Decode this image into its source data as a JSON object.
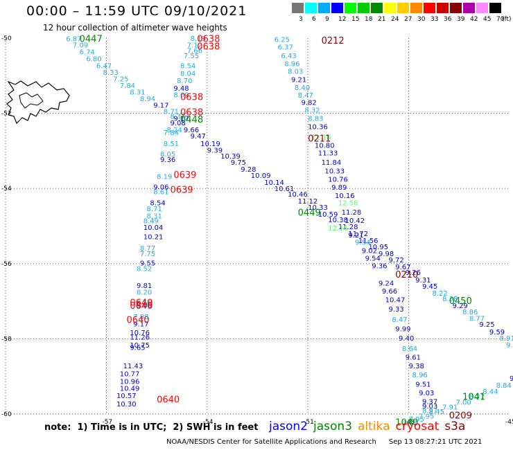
{
  "title": "00:00 – 11:59 UTC 09/10/2021",
  "subtitle": "12 hour collection of altimeter wave heights",
  "legend": {
    "unit": "(ft)",
    "levels": [
      {
        "label": "3",
        "color": "#777777"
      },
      {
        "label": "6",
        "color": "#00ffff"
      },
      {
        "label": "9",
        "color": "#00aaff"
      },
      {
        "label": "12",
        "color": "#0000ff"
      },
      {
        "label": "15",
        "color": "#00ff00"
      },
      {
        "label": "18",
        "color": "#00cc00"
      },
      {
        "label": "21",
        "color": "#008800"
      },
      {
        "label": "24",
        "color": "#ffff00"
      },
      {
        "label": "27",
        "color": "#ffcc00"
      },
      {
        "label": "30",
        "color": "#ff8800"
      },
      {
        "label": "33",
        "color": "#ff0000"
      },
      {
        "label": "36",
        "color": "#cc0000"
      },
      {
        "label": "39",
        "color": "#880000"
      },
      {
        "label": "42",
        "color": "#aa00aa"
      },
      {
        "label": "45",
        "color": "#ff88ff"
      },
      {
        "label": "70",
        "color": "#000000"
      }
    ]
  },
  "axes": {
    "lat_labels": [
      "-50",
      "-52",
      "-54",
      "-56",
      "-58",
      "-60"
    ],
    "lat_values": [
      -50,
      -52,
      -54,
      -56,
      -58,
      -60
    ],
    "lon_labels": [
      "-57",
      "-54",
      "-51",
      "-48",
      "-45"
    ],
    "lon_values": [
      -57,
      -54,
      -51,
      -48,
      -45
    ]
  },
  "colors": {
    "light": "#22aadd",
    "dark": "#0000cc",
    "pale": "#66ee66",
    "red": "#ff0000",
    "darkred": "#880000",
    "green": "#008800"
  },
  "chart_data": {
    "type": "scatter",
    "xlim": [
      -60,
      -45
    ],
    "ylim": [
      -60,
      -50
    ],
    "points": [
      {
        "x": -58.2,
        "y": -50.08,
        "v": "6.87",
        "c": "light"
      },
      {
        "x": -58.0,
        "y": -50.25,
        "v": "7.09",
        "c": "light"
      },
      {
        "x": -57.8,
        "y": -50.43,
        "v": "6.74",
        "c": "light"
      },
      {
        "x": -57.6,
        "y": -50.62,
        "v": "6.80",
        "c": "light"
      },
      {
        "x": -57.3,
        "y": -50.8,
        "v": "6.47",
        "c": "light"
      },
      {
        "x": -57.1,
        "y": -50.98,
        "v": "8.33",
        "c": "light"
      },
      {
        "x": -56.8,
        "y": -51.15,
        "v": "7.25",
        "c": "light"
      },
      {
        "x": -56.6,
        "y": -51.33,
        "v": "7.84",
        "c": "light"
      },
      {
        "x": -56.3,
        "y": -51.5,
        "v": "8.31",
        "c": "light"
      },
      {
        "x": -56.0,
        "y": -51.68,
        "v": "8.94",
        "c": "light"
      },
      {
        "x": -55.6,
        "y": -51.85,
        "v": "9.17",
        "c": "dark"
      },
      {
        "x": -55.3,
        "y": -52.02,
        "v": "8.71",
        "c": "light"
      },
      {
        "x": -55.0,
        "y": -52.2,
        "v": "9.17",
        "c": "dark"
      },
      {
        "x": -54.7,
        "y": -52.5,
        "v": "9.66",
        "c": "dark"
      },
      {
        "x": -54.5,
        "y": -52.67,
        "v": "9.47",
        "c": "dark"
      },
      {
        "x": -54.2,
        "y": -52.87,
        "v": "10.19",
        "c": "dark"
      },
      {
        "x": -54.0,
        "y": -53.05,
        "v": "9.39",
        "c": "dark"
      },
      {
        "x": -53.6,
        "y": -53.2,
        "v": "10.39",
        "c": "dark"
      },
      {
        "x": -53.3,
        "y": -53.37,
        "v": "9.75",
        "c": "dark"
      },
      {
        "x": -53.0,
        "y": -53.55,
        "v": "9.28",
        "c": "dark"
      },
      {
        "x": -52.7,
        "y": -53.72,
        "v": "10.09",
        "c": "dark"
      },
      {
        "x": -52.3,
        "y": -53.9,
        "v": "10.14",
        "c": "dark"
      },
      {
        "x": -52.0,
        "y": -54.07,
        "v": "10.61",
        "c": "dark"
      },
      {
        "x": -51.6,
        "y": -54.22,
        "v": "10.46",
        "c": "dark"
      },
      {
        "x": -51.3,
        "y": -54.4,
        "v": "11.12",
        "c": "dark"
      },
      {
        "x": -51.0,
        "y": -54.57,
        "v": "10.33",
        "c": "dark"
      },
      {
        "x": -50.7,
        "y": -54.75,
        "v": "10.59",
        "c": "dark"
      },
      {
        "x": -50.4,
        "y": -54.9,
        "v": "10.38",
        "c": "dark"
      },
      {
        "x": -50.1,
        "y": -55.08,
        "v": "11.28",
        "c": "dark"
      },
      {
        "x": -49.8,
        "y": -55.27,
        "v": "11.72",
        "c": "dark"
      },
      {
        "x": -49.5,
        "y": -55.45,
        "v": "11.56",
        "c": "dark"
      },
      {
        "x": -49.2,
        "y": -55.62,
        "v": "10.95",
        "c": "dark"
      },
      {
        "x": -48.9,
        "y": -55.8,
        "v": "9.98",
        "c": "dark"
      },
      {
        "x": -48.6,
        "y": -55.97,
        "v": "9.72",
        "c": "dark"
      },
      {
        "x": -48.4,
        "y": -56.15,
        "v": "9.67",
        "c": "dark"
      },
      {
        "x": -48.1,
        "y": -56.3,
        "v": "9.26",
        "c": "dark"
      },
      {
        "x": -47.8,
        "y": -56.5,
        "v": "9.31",
        "c": "dark"
      },
      {
        "x": -47.6,
        "y": -56.67,
        "v": "9.45",
        "c": "dark"
      },
      {
        "x": -47.3,
        "y": -56.85,
        "v": "8.22",
        "c": "light"
      },
      {
        "x": -47.0,
        "y": -57.0,
        "v": "8.38",
        "c": "light"
      },
      {
        "x": -46.7,
        "y": -57.18,
        "v": "9.29",
        "c": "dark"
      },
      {
        "x": -46.4,
        "y": -57.35,
        "v": "8.86",
        "c": "light"
      },
      {
        "x": -46.2,
        "y": -57.52,
        "v": "8.77",
        "c": "light"
      },
      {
        "x": -45.9,
        "y": -57.68,
        "v": "9.25",
        "c": "dark"
      },
      {
        "x": -45.6,
        "y": -57.88,
        "v": "9.59",
        "c": "dark"
      },
      {
        "x": -45.3,
        "y": -58.05,
        "v": "8.91",
        "c": "light"
      },
      {
        "x": -45.1,
        "y": -58.22,
        "v": "9.80",
        "c": "light"
      },
      {
        "x": -44.8,
        "y": -58.4,
        "v": "10.29",
        "c": "dark"
      },
      {
        "x": -44.6,
        "y": -58.57,
        "v": "10.19",
        "c": "dark"
      },
      {
        "x": -44.4,
        "y": -58.77,
        "v": "9.25",
        "c": "dark"
      },
      {
        "x": -44.3,
        "y": -58.9,
        "v": "9.05",
        "c": "dark"
      },
      {
        "x": -54.5,
        "y": -50.07,
        "v": "8.19",
        "c": "light"
      },
      {
        "x": -54.6,
        "y": -50.25,
        "v": "7.12",
        "c": "light"
      },
      {
        "x": -54.6,
        "y": -50.4,
        "v": "7.66",
        "c": "light"
      },
      {
        "x": -54.7,
        "y": -50.53,
        "v": "7.55",
        "c": "light"
      },
      {
        "x": -54.8,
        "y": -50.8,
        "v": "8.54",
        "c": "light"
      },
      {
        "x": -54.8,
        "y": -51.0,
        "v": "8.04",
        "c": "light"
      },
      {
        "x": -54.9,
        "y": -51.2,
        "v": "8.70",
        "c": "light"
      },
      {
        "x": -55.0,
        "y": -51.4,
        "v": "9.48",
        "c": "dark"
      },
      {
        "x": -55.0,
        "y": -51.57,
        "v": "8.09",
        "c": "light"
      },
      {
        "x": -55.1,
        "y": -52.15,
        "v": "8.37",
        "c": "light"
      },
      {
        "x": -55.1,
        "y": -52.32,
        "v": "9.08",
        "c": "dark"
      },
      {
        "x": -55.2,
        "y": -52.5,
        "v": "8.24",
        "c": "light"
      },
      {
        "x": -55.3,
        "y": -52.58,
        "v": "7.84",
        "c": "light"
      },
      {
        "x": -55.3,
        "y": -52.87,
        "v": "8.51",
        "c": "light"
      },
      {
        "x": -55.4,
        "y": -53.15,
        "v": "8.05",
        "c": "light"
      },
      {
        "x": -55.4,
        "y": -53.3,
        "v": "9.36",
        "c": "dark"
      },
      {
        "x": -55.5,
        "y": -53.75,
        "v": "8.19",
        "c": "light"
      },
      {
        "x": -55.6,
        "y": -54.02,
        "v": "9.06",
        "c": "dark"
      },
      {
        "x": -55.6,
        "y": -54.15,
        "v": "8.61",
        "c": "light"
      },
      {
        "x": -55.7,
        "y": -54.45,
        "v": "8.54",
        "c": "dark"
      },
      {
        "x": -55.8,
        "y": -54.6,
        "v": "8.71",
        "c": "light"
      },
      {
        "x": -55.8,
        "y": -54.8,
        "v": "8.31",
        "c": "light"
      },
      {
        "x": -55.9,
        "y": -54.93,
        "v": "8.49",
        "c": "light"
      },
      {
        "x": -55.9,
        "y": -55.1,
        "v": "10.04",
        "c": "dark"
      },
      {
        "x": -55.9,
        "y": -55.35,
        "v": "10.21",
        "c": "dark"
      },
      {
        "x": -56.0,
        "y": -55.65,
        "v": "8.77",
        "c": "light"
      },
      {
        "x": -56.0,
        "y": -55.8,
        "v": "7.75",
        "c": "light"
      },
      {
        "x": -56.0,
        "y": -56.05,
        "v": "9.55",
        "c": "dark"
      },
      {
        "x": -56.1,
        "y": -56.2,
        "v": "8.52",
        "c": "light"
      },
      {
        "x": -56.1,
        "y": -56.65,
        "v": "9.81",
        "c": "dark"
      },
      {
        "x": -56.1,
        "y": -56.82,
        "v": "8.20",
        "c": "light"
      },
      {
        "x": -56.1,
        "y": -57.1,
        "v": "8.56",
        "c": "light"
      },
      {
        "x": -56.1,
        "y": -57.17,
        "v": "9.06",
        "c": "dark"
      },
      {
        "x": -56.2,
        "y": -57.48,
        "v": "7.88",
        "c": "light"
      },
      {
        "x": -56.2,
        "y": -57.67,
        "v": "9.17",
        "c": "dark"
      },
      {
        "x": -56.3,
        "y": -57.9,
        "v": "10.76",
        "c": "dark"
      },
      {
        "x": -56.3,
        "y": -58.02,
        "v": "11.26",
        "c": "dark"
      },
      {
        "x": -56.3,
        "y": -58.23,
        "v": "10.75",
        "c": "dark"
      },
      {
        "x": -56.3,
        "y": -58.3,
        "v": "9.65",
        "c": "dark"
      },
      {
        "x": -56.5,
        "y": -58.78,
        "v": "11.43",
        "c": "dark"
      },
      {
        "x": -56.6,
        "y": -59.0,
        "v": "10.77",
        "c": "dark"
      },
      {
        "x": -56.6,
        "y": -59.2,
        "v": "10.96",
        "c": "dark"
      },
      {
        "x": -56.6,
        "y": -59.38,
        "v": "10.49",
        "c": "dark"
      },
      {
        "x": -56.7,
        "y": -59.58,
        "v": "10.57",
        "c": "dark"
      },
      {
        "x": -56.7,
        "y": -59.8,
        "v": "10.30",
        "c": "dark"
      },
      {
        "x": -52.0,
        "y": -50.1,
        "v": "6.25",
        "c": "light"
      },
      {
        "x": -51.9,
        "y": -50.3,
        "v": "6.37",
        "c": "light"
      },
      {
        "x": -51.8,
        "y": -50.53,
        "v": "6.43",
        "c": "light"
      },
      {
        "x": -51.7,
        "y": -50.75,
        "v": "8.96",
        "c": "light"
      },
      {
        "x": -51.6,
        "y": -50.95,
        "v": "8.03",
        "c": "light"
      },
      {
        "x": -51.5,
        "y": -51.17,
        "v": "9.21",
        "c": "dark"
      },
      {
        "x": -51.4,
        "y": -51.38,
        "v": "8.40",
        "c": "light"
      },
      {
        "x": -51.3,
        "y": -51.58,
        "v": "8.47",
        "c": "light"
      },
      {
        "x": -51.2,
        "y": -51.78,
        "v": "9.82",
        "c": "dark"
      },
      {
        "x": -51.1,
        "y": -51.98,
        "v": "8.32",
        "c": "light"
      },
      {
        "x": -51.0,
        "y": -52.2,
        "v": "8.83",
        "c": "light"
      },
      {
        "x": -51.0,
        "y": -52.42,
        "v": "10.36",
        "c": "dark"
      },
      {
        "x": -50.9,
        "y": -52.7,
        "v": "12.18",
        "c": "pale"
      },
      {
        "x": -50.8,
        "y": -52.92,
        "v": "10.80",
        "c": "dark"
      },
      {
        "x": -50.7,
        "y": -53.12,
        "v": "11.33",
        "c": "dark"
      },
      {
        "x": -50.6,
        "y": -53.37,
        "v": "11.84",
        "c": "dark"
      },
      {
        "x": -50.5,
        "y": -53.6,
        "v": "10.33",
        "c": "dark"
      },
      {
        "x": -50.4,
        "y": -53.82,
        "v": "10.76",
        "c": "dark"
      },
      {
        "x": -50.3,
        "y": -54.03,
        "v": "9.89",
        "c": "dark"
      },
      {
        "x": -50.2,
        "y": -54.25,
        "v": "10.16",
        "c": "dark"
      },
      {
        "x": -50.1,
        "y": -54.45,
        "v": "12.58",
        "c": "pale"
      },
      {
        "x": -50.0,
        "y": -54.7,
        "v": "11.28",
        "c": "dark"
      },
      {
        "x": -49.9,
        "y": -54.92,
        "v": "10.42",
        "c": "dark"
      },
      {
        "x": -50.4,
        "y": -55.12,
        "v": "12.16",
        "c": "pale"
      },
      {
        "x": -49.8,
        "y": -55.3,
        "v": "9.21",
        "c": "dark"
      },
      {
        "x": -49.6,
        "y": -55.5,
        "v": "9.54",
        "c": "light"
      },
      {
        "x": -49.4,
        "y": -55.72,
        "v": "9.02",
        "c": "dark"
      },
      {
        "x": -49.3,
        "y": -55.92,
        "v": "9.54",
        "c": "dark"
      },
      {
        "x": -49.1,
        "y": -56.12,
        "v": "9.36",
        "c": "dark"
      },
      {
        "x": -48.9,
        "y": -56.58,
        "v": "9.24",
        "c": "dark"
      },
      {
        "x": -48.8,
        "y": -56.8,
        "v": "9.66",
        "c": "dark"
      },
      {
        "x": -48.7,
        "y": -57.03,
        "v": "10.47",
        "c": "dark"
      },
      {
        "x": -48.6,
        "y": -57.27,
        "v": "9.33",
        "c": "dark"
      },
      {
        "x": -48.5,
        "y": -57.55,
        "v": "8.47",
        "c": "light"
      },
      {
        "x": -48.4,
        "y": -57.8,
        "v": "9.99",
        "c": "dark"
      },
      {
        "x": -48.3,
        "y": -58.05,
        "v": "9.40",
        "c": "dark"
      },
      {
        "x": -48.2,
        "y": -58.32,
        "v": "8.64",
        "c": "light"
      },
      {
        "x": -48.1,
        "y": -58.55,
        "v": "9.61",
        "c": "dark"
      },
      {
        "x": -48.0,
        "y": -58.78,
        "v": "9.38",
        "c": "dark"
      },
      {
        "x": -47.9,
        "y": -59.02,
        "v": "8.96",
        "c": "light"
      },
      {
        "x": -47.8,
        "y": -59.27,
        "v": "9.51",
        "c": "dark"
      },
      {
        "x": -47.7,
        "y": -59.5,
        "v": "9.03",
        "c": "dark"
      },
      {
        "x": -47.6,
        "y": -59.73,
        "v": "9.37",
        "c": "dark"
      },
      {
        "x": -47.6,
        "y": -59.85,
        "v": "9.03",
        "c": "dark"
      },
      {
        "x": -47.6,
        "y": -59.97,
        "v": "8.97",
        "c": "light"
      },
      {
        "x": -44.6,
        "y": -58.9,
        "v": "7.98",
        "c": "light"
      },
      {
        "x": -45.0,
        "y": -59.12,
        "v": "9.06",
        "c": "dark"
      },
      {
        "x": -45.4,
        "y": -59.3,
        "v": "8.84",
        "c": "light"
      },
      {
        "x": -45.8,
        "y": -59.47,
        "v": "8.44",
        "c": "light"
      },
      {
        "x": -46.2,
        "y": -59.6,
        "v": "8.27",
        "c": "light"
      },
      {
        "x": -46.6,
        "y": -59.75,
        "v": "7.00",
        "c": "light"
      },
      {
        "x": -47.0,
        "y": -59.88,
        "v": "7.91",
        "c": "light"
      },
      {
        "x": -47.4,
        "y": -60.0,
        "v": "8.45",
        "c": "light"
      },
      {
        "x": -47.7,
        "y": -60.12,
        "v": "7.95",
        "c": "light"
      },
      {
        "x": -48.0,
        "y": -60.2,
        "v": "7.95",
        "c": "light"
      },
      {
        "x": -48.2,
        "y": -60.3,
        "v": "7.57",
        "c": "light"
      }
    ],
    "time_labels": [
      {
        "x": -57.8,
        "y": -50.1,
        "v": "0447",
        "c": "green"
      },
      {
        "x": -54.3,
        "y": -50.1,
        "v": "0638",
        "c": "red"
      },
      {
        "x": -54.3,
        "y": -50.3,
        "v": "0638",
        "c": "red"
      },
      {
        "x": -50.6,
        "y": -50.15,
        "v": "0212",
        "c": "darkred"
      },
      {
        "x": -54.8,
        "y": -51.65,
        "v": "0638",
        "c": "red"
      },
      {
        "x": -54.8,
        "y": -52.05,
        "v": "0638",
        "c": "red"
      },
      {
        "x": -54.8,
        "y": -52.25,
        "v": "0448",
        "c": "green"
      },
      {
        "x": -51.0,
        "y": -52.75,
        "v": "0211",
        "c": "darkred"
      },
      {
        "x": -55.0,
        "y": -53.72,
        "v": "0639",
        "c": "red"
      },
      {
        "x": -55.1,
        "y": -54.12,
        "v": "0639",
        "c": "red"
      },
      {
        "x": -51.3,
        "y": -54.72,
        "v": "0449",
        "c": "green"
      },
      {
        "x": -48.4,
        "y": -56.37,
        "v": "0210",
        "c": "darkred"
      },
      {
        "x": -46.8,
        "y": -57.07,
        "v": "0450",
        "c": "green"
      },
      {
        "x": -56.3,
        "y": -57.12,
        "v": "0640",
        "c": "red"
      },
      {
        "x": -56.3,
        "y": -57.2,
        "v": "0640",
        "c": "red"
      },
      {
        "x": -56.4,
        "y": -57.58,
        "v": "0640",
        "c": "red"
      },
      {
        "x": -55.5,
        "y": -59.7,
        "v": "0640",
        "c": "red"
      },
      {
        "x": -46.4,
        "y": -59.62,
        "v": "1041",
        "c": "green"
      },
      {
        "x": -46.8,
        "y": -60.12,
        "v": "0209",
        "c": "darkred"
      },
      {
        "x": -48.4,
        "y": -60.3,
        "v": "1040",
        "c": "green"
      }
    ]
  },
  "footer": {
    "note": "note:  1) Time is in UTC;  2) SWH is in feet",
    "satellites": [
      {
        "name": "jason2",
        "color": "#0000ff"
      },
      {
        "name": "jason3",
        "color": "#008800"
      },
      {
        "name": "altika",
        "color": "#ff8800"
      },
      {
        "name": "cryosat",
        "color": "#ff0000"
      },
      {
        "name": "s3a",
        "color": "#880000"
      }
    ],
    "credit": "NOAA/NESDIS Center for Satellite Applications and Research",
    "timestamp": "Sep 13 08:27:21 UTC 2021"
  }
}
